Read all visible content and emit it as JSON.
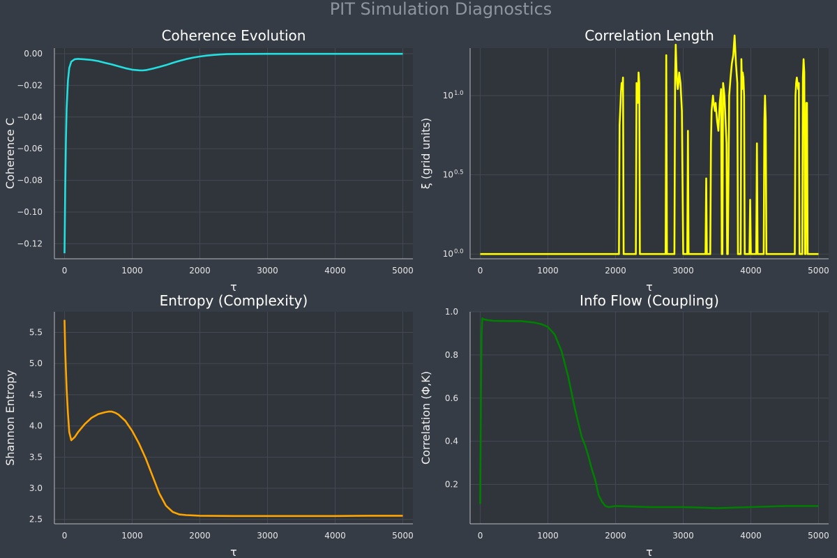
{
  "figure": {
    "title": "PIT Simulation Diagnostics"
  },
  "chart_data": [
    {
      "type": "line",
      "title": "Coherence Evolution",
      "xlabel": "τ",
      "ylabel": "Coherence C",
      "xlim": [
        -150,
        5150
      ],
      "ylim": [
        -0.1295,
        0.0035
      ],
      "xticks": [
        0,
        1000,
        2000,
        3000,
        4000,
        5000
      ],
      "yticks": [
        0.0,
        -0.02,
        -0.04,
        -0.06,
        -0.08,
        -0.1,
        -0.12
      ],
      "ytick_labels": [
        "0.00",
        "−0.02",
        "−0.04",
        "−0.06",
        "−0.08",
        "−0.10",
        "−0.12"
      ],
      "grid": true,
      "series": [
        {
          "color": "#22e0e0",
          "x": [
            0,
            10,
            20,
            30,
            50,
            70,
            100,
            150,
            200,
            300,
            400,
            500,
            600,
            700,
            800,
            900,
            1000,
            1100,
            1150,
            1200,
            1300,
            1400,
            1500,
            1600,
            1700,
            1800,
            1900,
            2000,
            2100,
            2200,
            2300,
            2400,
            2500,
            3000,
            3500,
            4000,
            4500,
            5000
          ],
          "y": [
            -0.126,
            -0.085,
            -0.055,
            -0.035,
            -0.017,
            -0.009,
            -0.005,
            -0.0035,
            -0.0033,
            -0.0036,
            -0.004,
            -0.0047,
            -0.0058,
            -0.0068,
            -0.008,
            -0.0092,
            -0.0101,
            -0.0105,
            -0.0106,
            -0.0104,
            -0.0095,
            -0.0084,
            -0.0072,
            -0.0058,
            -0.0045,
            -0.0034,
            -0.0025,
            -0.0018,
            -0.0012,
            -0.0008,
            -0.0005,
            -0.0003,
            -0.0002,
            -0.0001,
            -0.0001,
            -0.0001,
            -0.0001,
            -0.0001
          ]
        }
      ]
    },
    {
      "type": "line",
      "title": "Correlation Length",
      "xlabel": "τ",
      "ylabel": "ξ (grid units)",
      "yscale": "log10",
      "xlim": [
        -150,
        5150
      ],
      "ylim_log10": [
        -0.03,
        1.3
      ],
      "xticks": [
        0,
        1000,
        2000,
        3000,
        4000,
        5000
      ],
      "yticks_log10": [
        0.0,
        0.5,
        1.0
      ],
      "ytick_labels": [
        "10",
        "10",
        "10"
      ],
      "ytick_exponents": [
        "0.0",
        "0.5",
        "1.0"
      ],
      "grid": true,
      "series": [
        {
          "color": "#ffff00",
          "x": [
            0,
            2050,
            2060,
            2080,
            2090,
            2100,
            2110,
            2120,
            2300,
            2310,
            2320,
            2330,
            2340,
            2350,
            2360,
            2370,
            2740,
            2750,
            2760,
            2870,
            2880,
            2890,
            2900,
            2910,
            2920,
            2930,
            2940,
            2950,
            2960,
            2980,
            3000,
            3040,
            3060,
            3070,
            3080,
            3090,
            3100,
            3330,
            3340,
            3350,
            3400,
            3410,
            3420,
            3430,
            3440,
            3450,
            3460,
            3470,
            3480,
            3500,
            3520,
            3540,
            3560,
            3570,
            3580,
            3590,
            3600,
            3610,
            3620,
            3640,
            3650,
            3660,
            3680,
            3700,
            3720,
            3740,
            3760,
            3780,
            3800,
            3810,
            3820,
            3850,
            3860,
            3870,
            3880,
            3890,
            3900,
            3910,
            3980,
            3990,
            4000,
            4010,
            4080,
            4090,
            4100,
            4110,
            4190,
            4200,
            4210,
            4220,
            4230,
            4650,
            4660,
            4670,
            4680,
            4690,
            4700,
            4710,
            4720,
            4740,
            4760,
            4770,
            4780,
            4790,
            4800,
            4810,
            4820,
            4830,
            4840,
            4850,
            5000
          ],
          "y": [
            1.0,
            1.0,
            6.5,
            10.5,
            12.0,
            11.0,
            13.0,
            1.0,
            1.0,
            12.0,
            11.0,
            9.0,
            14.0,
            12.0,
            1.0,
            1.0,
            1.0,
            18.0,
            1.0,
            1.0,
            13.0,
            21.0,
            15.0,
            12.0,
            11.0,
            12.0,
            14.0,
            13.0,
            12.0,
            8.0,
            1.0,
            1.0,
            1.0,
            6.0,
            1.0,
            1.0,
            1.0,
            1.0,
            3.0,
            1.0,
            1.0,
            5.0,
            8.0,
            9.0,
            10.0,
            9.0,
            8.5,
            8.0,
            9.0,
            7.0,
            6.0,
            9.0,
            11.0,
            1.0,
            1.0,
            12.0,
            11.0,
            10.0,
            8.0,
            5.0,
            1.0,
            1.0,
            10.0,
            13.0,
            16.0,
            18.0,
            24.0,
            16.0,
            12.0,
            1.0,
            1.0,
            1.0,
            17.0,
            11.0,
            14.0,
            13.0,
            10.0,
            1.0,
            1.0,
            2.2,
            1.0,
            1.0,
            1.0,
            5.0,
            1.0,
            1.0,
            1.0,
            7.0,
            10.0,
            7.0,
            1.0,
            1.0,
            10.0,
            12.0,
            13.0,
            12.0,
            11.0,
            12.0,
            1.0,
            1.0,
            1.0,
            13.0,
            17.0,
            14.0,
            1.0,
            1.0,
            9.0,
            9.0,
            1.0,
            1.0,
            1.0
          ]
        }
      ]
    },
    {
      "type": "line",
      "title": "Entropy (Complexity)",
      "xlabel": "τ",
      "ylabel": "Shannon Entropy",
      "xlim": [
        -150,
        5150
      ],
      "ylim": [
        2.43,
        5.83
      ],
      "xticks": [
        0,
        1000,
        2000,
        3000,
        4000,
        5000
      ],
      "yticks": [
        2.5,
        3.0,
        3.5,
        4.0,
        4.5,
        5.0,
        5.5
      ],
      "ytick_labels": [
        "2.5",
        "3.0",
        "3.5",
        "4.0",
        "4.5",
        "5.0",
        "5.5"
      ],
      "grid": true,
      "series": [
        {
          "color": "#ffa500",
          "x": [
            0,
            10,
            20,
            30,
            50,
            70,
            100,
            150,
            200,
            300,
            400,
            500,
            600,
            650,
            700,
            750,
            800,
            900,
            1000,
            1100,
            1200,
            1300,
            1400,
            1500,
            1600,
            1700,
            1800,
            1900,
            2000,
            2500,
            3000,
            3500,
            4000,
            4500,
            5000
          ],
          "y": [
            5.7,
            5.2,
            4.9,
            4.6,
            4.2,
            3.9,
            3.77,
            3.82,
            3.9,
            4.03,
            4.13,
            4.19,
            4.22,
            4.23,
            4.23,
            4.21,
            4.18,
            4.08,
            3.92,
            3.72,
            3.48,
            3.2,
            2.92,
            2.72,
            2.62,
            2.58,
            2.57,
            2.565,
            2.56,
            2.555,
            2.555,
            2.555,
            2.555,
            2.56,
            2.56
          ]
        }
      ]
    },
    {
      "type": "line",
      "title": "Info Flow (Coupling)",
      "xlabel": "τ",
      "ylabel": "Correlation (Φ,K)",
      "xlim": [
        -150,
        5150
      ],
      "ylim": [
        0.0175,
        1.0
      ],
      "xticks": [
        0,
        1000,
        2000,
        3000,
        4000,
        5000
      ],
      "yticks": [
        0.2,
        0.4,
        0.6,
        0.8,
        1.0
      ],
      "ytick_labels": [
        "0.2",
        "0.4",
        "0.6",
        "0.8",
        "1.0"
      ],
      "grid": true,
      "series": [
        {
          "color": "#008000",
          "x": [
            0,
            10,
            20,
            30,
            50,
            100,
            200,
            400,
            600,
            800,
            900,
            1000,
            1100,
            1200,
            1300,
            1400,
            1500,
            1550,
            1600,
            1650,
            1700,
            1750,
            1800,
            1850,
            1900,
            2000,
            2500,
            3000,
            3500,
            4000,
            4500,
            5000
          ],
          "y": [
            0.11,
            0.6,
            0.9,
            0.97,
            0.965,
            0.962,
            0.958,
            0.957,
            0.957,
            0.95,
            0.943,
            0.93,
            0.895,
            0.82,
            0.7,
            0.55,
            0.42,
            0.38,
            0.33,
            0.27,
            0.22,
            0.15,
            0.12,
            0.1,
            0.095,
            0.1,
            0.095,
            0.095,
            0.09,
            0.095,
            0.1,
            0.1
          ]
        }
      ]
    }
  ]
}
